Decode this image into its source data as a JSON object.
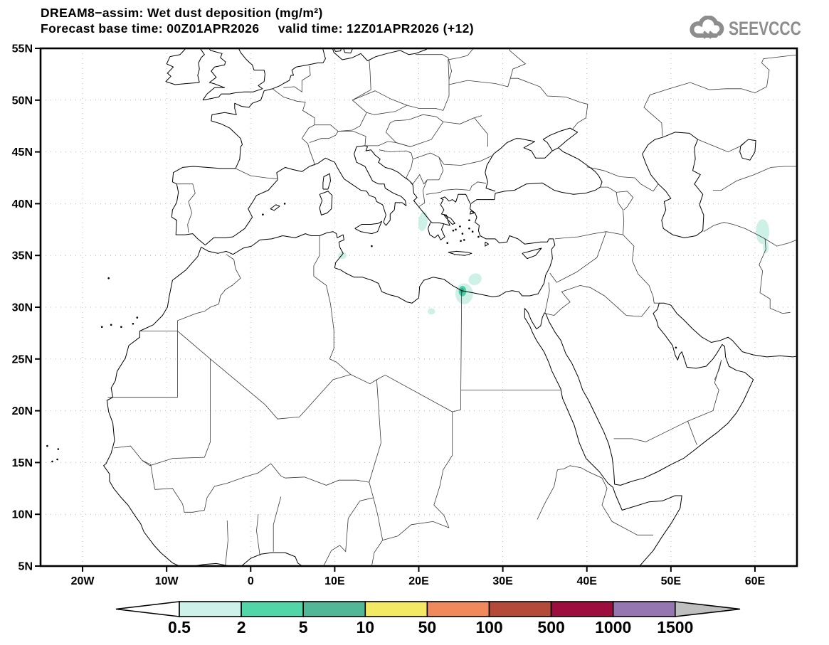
{
  "header": {
    "title_line1": "DREAM8−assim: Wet dust deposition (mg/m²)",
    "title_line2": "Forecast base time: 00Z01APR2026     valid time: 12Z01APR2026 (+12)"
  },
  "logo": {
    "text": "SEEVCCC"
  },
  "map": {
    "lat_ticks": [
      {
        "label": "55N",
        "lat": 55
      },
      {
        "label": "50N",
        "lat": 50
      },
      {
        "label": "45N",
        "lat": 45
      },
      {
        "label": "40N",
        "lat": 40
      },
      {
        "label": "35N",
        "lat": 35
      },
      {
        "label": "30N",
        "lat": 30
      },
      {
        "label": "25N",
        "lat": 25
      },
      {
        "label": "20N",
        "lat": 20
      },
      {
        "label": "15N",
        "lat": 15
      },
      {
        "label": "10N",
        "lat": 10
      },
      {
        "label": "5N",
        "lat": 5
      }
    ],
    "lon_ticks": [
      {
        "label": "20W",
        "lon": -20
      },
      {
        "label": "10W",
        "lon": -10
      },
      {
        "label": "0",
        "lon": 0
      },
      {
        "label": "10E",
        "lon": 10
      },
      {
        "label": "20E",
        "lon": 20
      },
      {
        "label": "30E",
        "lon": 30
      },
      {
        "label": "40E",
        "lon": 40
      },
      {
        "label": "50E",
        "lon": 50
      },
      {
        "label": "60E",
        "lon": 60
      }
    ]
  },
  "colorbar": {
    "labels": [
      "0.5",
      "2",
      "5",
      "10",
      "50",
      "100",
      "500",
      "1000",
      "1500"
    ],
    "segment_colors": [
      "#cdf2e9",
      "#52d6a8",
      "#52b796",
      "#f4e964",
      "#f08a5c",
      "#b44b38",
      "#9d0d3d",
      "#9676b0"
    ],
    "underflow_color": "#ffffff",
    "overflow_color": "#bfbfbf"
  },
  "chart_data": {
    "type": "heatmap",
    "title": "DREAM8−assim: Wet dust deposition (mg/m²)",
    "units": "mg/m²",
    "forecast_base_time": "00Z01APR2026",
    "valid_time": "12Z01APR2026 (+12)",
    "lon_range": [
      -25,
      65
    ],
    "lat_range": [
      5,
      55
    ],
    "grid_interval_lon_deg": 10,
    "grid_interval_lat_deg": 5,
    "scale_values": [
      0.5,
      2,
      5,
      10,
      50,
      100,
      500,
      1000,
      1500
    ],
    "deposition_areas": [
      {
        "region": "ionian-sea-west-greece",
        "lon": 20.5,
        "lat": 38.3,
        "rx_deg": 0.55,
        "ry_deg": 0.95,
        "rot": 8,
        "level": "0.5–2",
        "color": "#cdf0e7"
      },
      {
        "region": "tunisia-east-coast",
        "lon": 10.9,
        "lat": 35.0,
        "rx_deg": 0.5,
        "ry_deg": 0.35,
        "rot": 0,
        "level": "0.5–2",
        "color": "#cdf0e7"
      },
      {
        "region": "egypt-offshore-mediterranean",
        "lon": 26.7,
        "lat": 32.7,
        "rx_deg": 0.8,
        "ry_deg": 0.55,
        "rot": -25,
        "level": "0.5–2",
        "color": "#cdf0e7"
      },
      {
        "region": "libya-egypt-coast-outer",
        "lon": 25.4,
        "lat": 31.3,
        "rx_deg": 1.05,
        "ry_deg": 1.0,
        "rot": 0,
        "level": "0.5–2",
        "color": "#cdf0e7"
      },
      {
        "region": "libya-egypt-coast-mid",
        "lon": 25.2,
        "lat": 31.55,
        "rx_deg": 0.45,
        "ry_deg": 0.5,
        "rot": 0,
        "level": "2–5",
        "color": "#49cda4"
      },
      {
        "region": "libya-egypt-coast-core",
        "lon": 25.15,
        "lat": 31.6,
        "rx_deg": 0.2,
        "ry_deg": 0.25,
        "rot": 0,
        "level": "5–10",
        "color": "#2aa88a"
      },
      {
        "region": "ne-libya-inland",
        "lon": 21.5,
        "lat": 29.6,
        "rx_deg": 0.45,
        "ry_deg": 0.3,
        "rot": 0,
        "level": "0.5–2",
        "color": "#cdf0e7"
      },
      {
        "region": "iran-turkmenistan-border",
        "lon": 60.9,
        "lat": 37.3,
        "rx_deg": 0.8,
        "ry_deg": 1.2,
        "rot": 0,
        "level": "0.5–2",
        "color": "#cdf0e7"
      },
      {
        "region": "iran-afghanistan-border",
        "lon": 61.3,
        "lat": 35.8,
        "rx_deg": 0.35,
        "ry_deg": 0.6,
        "rot": 0,
        "level": "0.5–2",
        "color": "#cdf0e7"
      }
    ]
  }
}
